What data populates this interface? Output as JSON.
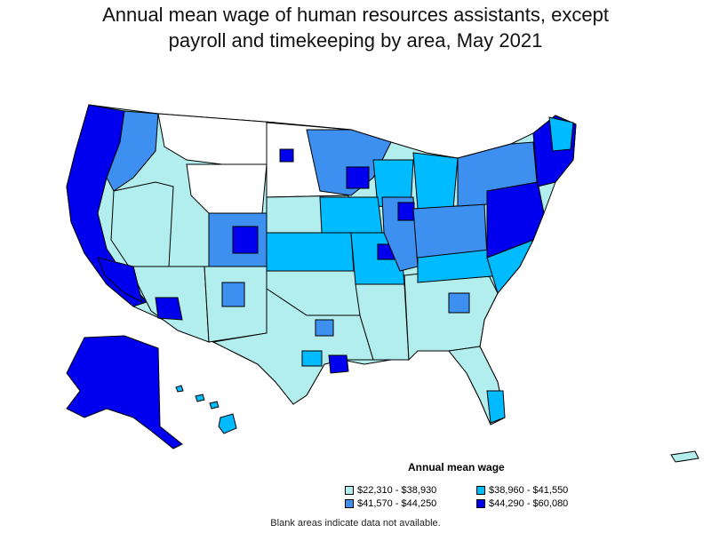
{
  "title": {
    "line1": "Annual mean wage of human resources assistants, except",
    "line2": "payroll and timekeeping by area, May 2021"
  },
  "legend": {
    "title": "Annual mean wage",
    "items": [
      {
        "label": "$22,310 - $38,930",
        "color": "#b2eeee"
      },
      {
        "label": "$38,960 - $41,550",
        "color": "#00bbff"
      },
      {
        "label": "$41,570 - $44,250",
        "color": "#3d8ff0"
      },
      {
        "label": "$44,290 - $60,080",
        "color": "#0000ee"
      }
    ]
  },
  "footnote": "Blank areas indicate data not available.",
  "colors": {
    "blank": "#ffffff",
    "border": "#000000"
  }
}
